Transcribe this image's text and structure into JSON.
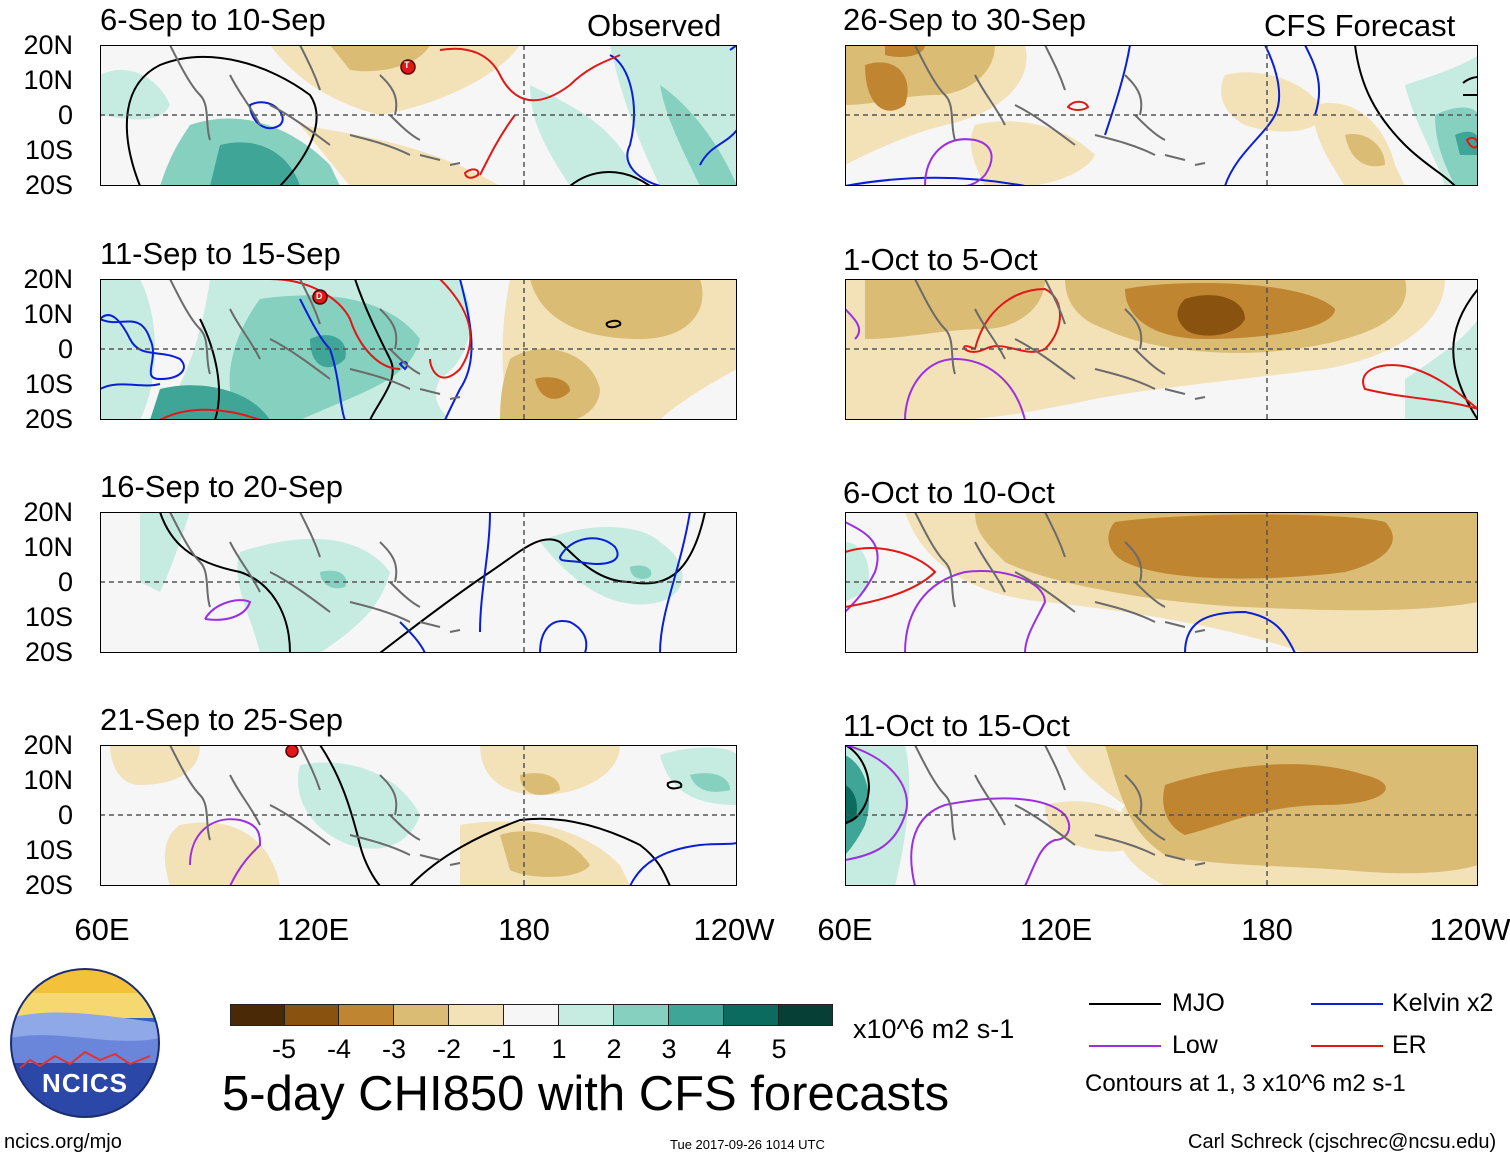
{
  "left_column_tag": "Observed",
  "right_column_tag": "CFS Forecast",
  "panels": [
    {
      "title": "6-Sep to 10-Sep"
    },
    {
      "title": "11-Sep to 15-Sep"
    },
    {
      "title": "16-Sep to 20-Sep"
    },
    {
      "title": "21-Sep to 25-Sep"
    },
    {
      "title": "26-Sep to 30-Sep"
    },
    {
      "title": "1-Oct to 5-Oct"
    },
    {
      "title": "6-Oct to 10-Oct"
    },
    {
      "title": "11-Oct to 15-Oct"
    }
  ],
  "lat_labels": [
    "20N",
    "10N",
    "0",
    "10S",
    "20S"
  ],
  "lon_labels": [
    "60E",
    "120E",
    "180",
    "120W"
  ],
  "colorbar": {
    "ticks": [
      "-5",
      "-4",
      "-3",
      "-2",
      "-1",
      "1",
      "2",
      "3",
      "4",
      "5"
    ],
    "units": "x10^6 m2 s-1",
    "colors": [
      "#4a2a06",
      "#8a520f",
      "#bf8530",
      "#dbbc74",
      "#f3e2b8",
      "#f6f6f6",
      "#c6ece2",
      "#86d0c0",
      "#3fa596",
      "#0a6b5e",
      "#063f36"
    ]
  },
  "main_title": "5-day CHI850 with CFS forecasts",
  "legend": {
    "mjo": "MJO",
    "kelvin": "Kelvin x2",
    "low": "Low",
    "er": "ER",
    "note": "Contours at 1, 3 x10^6 m2 s-1",
    "colors": {
      "mjo": "#000000",
      "kelvin": "#0a1fd6",
      "low": "#9b30e0",
      "er": "#e01818"
    }
  },
  "logo_text": "NCICS",
  "footer": {
    "url": "ncics.org/mjo",
    "timestamp": "Tue 2017-09-26 1014 UTC",
    "credit": "Carl Schreck (cjschrec@ncsu.edu)"
  },
  "storm_markers": [
    "T",
    "D"
  ]
}
